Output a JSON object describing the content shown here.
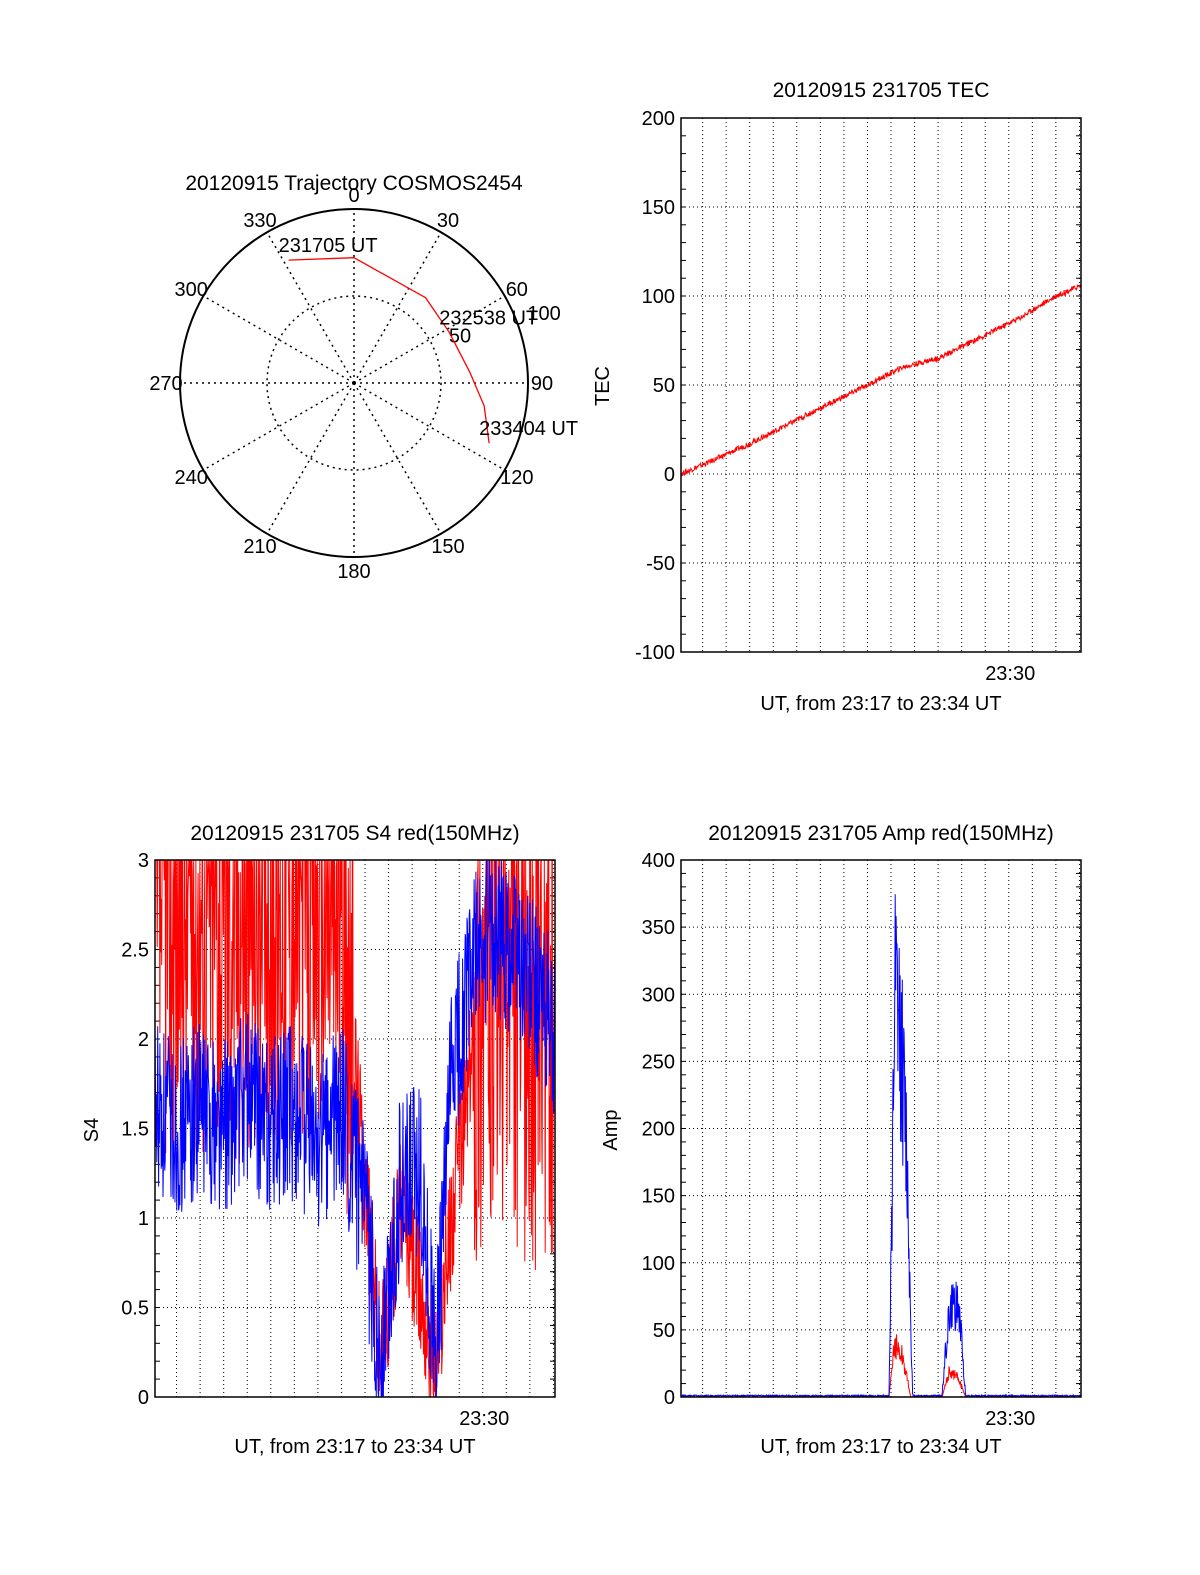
{
  "colors": {
    "red": "#ff0000",
    "blue": "#0000ff",
    "axis": "#000000",
    "grid": "#000000",
    "background": "#ffffff"
  },
  "chart_data": [
    {
      "type": "polar",
      "title": "20120915 Trajectory COSMOS2454",
      "angle_labels": [
        "0",
        "30",
        "60",
        "90",
        "120",
        "150",
        "180",
        "210",
        "240",
        "270",
        "300",
        "330"
      ],
      "radial_labels": [
        "50",
        "100"
      ],
      "trajectory": {
        "color": "red",
        "points": [
          {
            "azimuth": 332,
            "radius": 80,
            "label": "231705 UT"
          },
          {
            "azimuth": 0,
            "radius": 72
          },
          {
            "azimuth": 40,
            "radius": 64
          },
          {
            "azimuth": 62,
            "radius": 62,
            "label": "232538 UT"
          },
          {
            "azimuth": 85,
            "radius": 67
          },
          {
            "azimuth": 100,
            "radius": 76
          },
          {
            "azimuth": 114,
            "radius": 85,
            "label": "233404 UT"
          }
        ]
      }
    },
    {
      "type": "line",
      "title": "20120915 231705 TEC",
      "xlabel": "UT, from 23:17 to 23:34 UT",
      "ylabel": "TEC",
      "x_range": [
        "23:17:05",
        "23:34:04"
      ],
      "x_tick_label": "23:30",
      "ylim": [
        -100,
        200
      ],
      "y_ticks": [
        -100,
        -50,
        0,
        50,
        100,
        150,
        200
      ],
      "series": [
        {
          "color": "red",
          "x": [
            "23:17:05",
            "23:18:30",
            "23:20:00",
            "23:21:30",
            "23:23:00",
            "23:25:00",
            "23:26:30",
            "23:28:00",
            "23:30:00",
            "23:31:30",
            "23:33:00",
            "23:34:04"
          ],
          "values": [
            0,
            8,
            17,
            27,
            37,
            50,
            60,
            65,
            78,
            88,
            100,
            106
          ]
        }
      ]
    },
    {
      "type": "line",
      "title": "20120915 231705 S4 red(150MHz)",
      "xlabel": "UT, from 23:17 to 23:34 UT",
      "ylabel": "S4",
      "x_range": [
        "23:17:05",
        "23:34:04"
      ],
      "x_tick_label": "23:30",
      "ylim": [
        0,
        3
      ],
      "y_ticks": [
        "0",
        "0.5",
        "1",
        "1.5",
        "2",
        "2.5",
        "3"
      ],
      "series": [
        {
          "color": "red",
          "x": [
            "23:17:05",
            "23:19:00",
            "23:21:00",
            "23:23:00",
            "23:25:00",
            "23:26:00",
            "23:26:40",
            "23:27:30",
            "23:28:20",
            "23:29:00",
            "23:29:40",
            "23:31:00",
            "23:32:30",
            "23:34:04"
          ],
          "values": [
            2.8,
            2.8,
            2.8,
            2.9,
            2.8,
            1.2,
            0.2,
            1.1,
            0.6,
            0.2,
            1.0,
            2.4,
            2.3,
            2.0
          ]
        },
        {
          "color": "blue",
          "x": [
            "23:17:05",
            "23:18:00",
            "23:19:00",
            "23:20:00",
            "23:21:00",
            "23:22:00",
            "23:23:00",
            "23:24:00",
            "23:25:00",
            "23:26:00",
            "23:26:40",
            "23:27:30",
            "23:28:20",
            "23:29:00",
            "23:29:40",
            "23:30:30",
            "23:31:30",
            "23:32:30",
            "23:33:30",
            "23:34:04"
          ],
          "values": [
            1.6,
            1.5,
            1.6,
            1.5,
            1.7,
            1.5,
            1.6,
            1.4,
            1.6,
            1.0,
            0.15,
            1.2,
            1.3,
            0.15,
            1.8,
            2.4,
            2.6,
            2.5,
            2.2,
            2.0
          ]
        }
      ]
    },
    {
      "type": "line",
      "title": "20120915 231705 Amp red(150MHz)",
      "xlabel": "UT, from 23:17 to 23:34 UT",
      "ylabel": "Amp",
      "x_range": [
        "23:17:05",
        "23:34:04"
      ],
      "x_tick_label": "23:30",
      "ylim": [
        0,
        400
      ],
      "y_ticks": [
        0,
        50,
        100,
        150,
        200,
        250,
        300,
        350,
        400
      ],
      "series": [
        {
          "color": "red",
          "x": [
            "23:17:05",
            "23:25:55",
            "23:26:10",
            "23:26:30",
            "23:26:50",
            "23:28:10",
            "23:28:30",
            "23:28:50",
            "23:29:10",
            "23:34:04"
          ],
          "values": [
            0,
            0,
            40,
            30,
            0,
            0,
            20,
            15,
            0,
            0
          ]
        },
        {
          "color": "blue",
          "x": [
            "23:17:05",
            "23:25:55",
            "23:26:10",
            "23:26:25",
            "23:26:40",
            "23:26:55",
            "23:28:10",
            "23:28:25",
            "23:28:40",
            "23:28:55",
            "23:29:10",
            "23:34:04"
          ],
          "values": [
            1,
            1,
            290,
            260,
            180,
            1,
            1,
            55,
            70,
            60,
            1,
            1
          ]
        }
      ]
    }
  ]
}
